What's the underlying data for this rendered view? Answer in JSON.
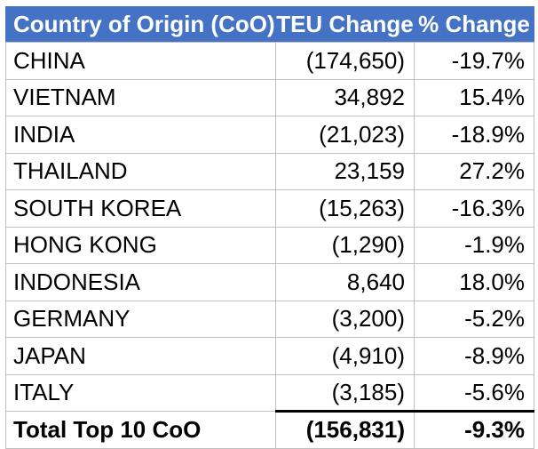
{
  "chart_data": {
    "type": "table",
    "title": "",
    "columns": [
      "Country of Origin (CoO)",
      "TEU Change",
      "% Change"
    ],
    "rows": [
      {
        "country": "CHINA",
        "teu_change": "(174,650)",
        "teu_change_value": -174650,
        "pct_change": "-19.7%",
        "pct_change_value": -19.7
      },
      {
        "country": "VIETNAM",
        "teu_change": "34,892",
        "teu_change_value": 34892,
        "pct_change": "15.4%",
        "pct_change_value": 15.4
      },
      {
        "country": "INDIA",
        "teu_change": "(21,023)",
        "teu_change_value": -21023,
        "pct_change": "-18.9%",
        "pct_change_value": -18.9
      },
      {
        "country": "THAILAND",
        "teu_change": "23,159",
        "teu_change_value": 23159,
        "pct_change": "27.2%",
        "pct_change_value": 27.2
      },
      {
        "country": "SOUTH KOREA",
        "teu_change": "(15,263)",
        "teu_change_value": -15263,
        "pct_change": "-16.3%",
        "pct_change_value": -16.3
      },
      {
        "country": "HONG KONG",
        "teu_change": "(1,290)",
        "teu_change_value": -1290,
        "pct_change": "-1.9%",
        "pct_change_value": -1.9
      },
      {
        "country": "INDONESIA",
        "teu_change": "8,640",
        "teu_change_value": 8640,
        "pct_change": "18.0%",
        "pct_change_value": 18.0
      },
      {
        "country": "GERMANY",
        "teu_change": "(3,200)",
        "teu_change_value": -3200,
        "pct_change": "-5.2%",
        "pct_change_value": -5.2
      },
      {
        "country": "JAPAN",
        "teu_change": "(4,910)",
        "teu_change_value": -4910,
        "pct_change": "-8.9%",
        "pct_change_value": -8.9
      },
      {
        "country": "ITALY",
        "teu_change": "(3,185)",
        "teu_change_value": -3185,
        "pct_change": "-5.6%",
        "pct_change_value": -5.6
      }
    ],
    "total": {
      "label": "Total Top 10 CoO",
      "teu_change": "(156,831)",
      "teu_change_value": -156831,
      "pct_change": "-9.3%",
      "pct_change_value": -9.3
    },
    "notes": "Negative values shown in parentheses; grid on; no legend"
  },
  "colors": {
    "header_bg": "#4472C4",
    "header_text": "#FFFFFF",
    "grid_border": "#BFBFBF",
    "total_top_border": "#000000",
    "body_text": "#000000"
  }
}
